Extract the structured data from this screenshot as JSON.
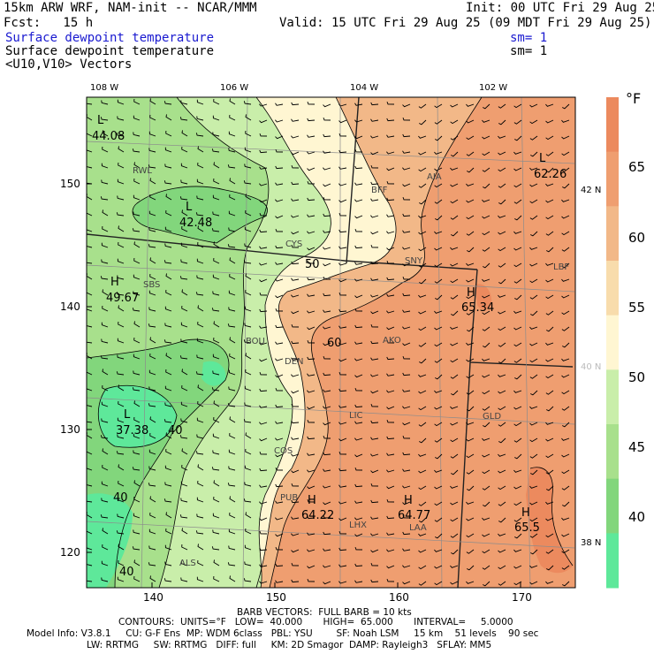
{
  "header": {
    "model_title": "15km ARW WRF, NAM-init -- NCAR/MMM",
    "init": "Init: 00 UTC Fri 29 Aug 25",
    "fcst": "Fcst:   15 h",
    "valid": "Valid: 15 UTC Fri 29 Aug 25 (09 MDT Fri 29 Aug 25)",
    "field1": "Surface dewpoint temperature",
    "field1_sm": "sm= 1",
    "field2": "Surface dewpoint temperature",
    "field2_sm": "sm= 1",
    "field3": "<U10,V10> Vectors"
  },
  "top_axis": [
    "108 W",
    "106 W",
    "104 W",
    "102 W"
  ],
  "left_axis": [
    "150",
    "140",
    "130",
    "120"
  ],
  "bottom_axis": [
    "140",
    "150",
    "160",
    "170"
  ],
  "right_lat": [
    "42 N",
    "40 N",
    "38 N"
  ],
  "colorbar": {
    "unit": "°F",
    "ticks": [
      "65",
      "60",
      "55",
      "50",
      "45",
      "40"
    ],
    "colors": [
      "#5ee89a",
      "#82d67c",
      "#a8e08c",
      "#c9eeaa",
      "#fff6d2",
      "#f8dcac",
      "#f2b888",
      "#ef9e70",
      "#ec8a5e"
    ]
  },
  "map_labels": {
    "low_nw": "L",
    "low_nw_val": "44.08",
    "low_c": "L",
    "low_c_val": "42.48",
    "high_w": "H",
    "high_w_val": "49.67",
    "low_sw": "L",
    "low_sw_val": "37.38",
    "low_ne": "L",
    "low_ne_val": "62.26",
    "high_ne": "H",
    "high_ne_val": "65.34",
    "high_pub": "H",
    "high_pub_val": "64.22",
    "high_laa": "H",
    "high_laa_val": "64.77",
    "high_se": "H",
    "high_se_val": "65.5",
    "contour_50": "50",
    "contour_60": "60",
    "contour_40a": "40",
    "contour_40b": "40",
    "contour_40c": "40",
    "stations": [
      "RWL",
      "BFF",
      "AIA",
      "CYS",
      "SNY",
      "LBF",
      "SBS",
      "BOU",
      "AKO",
      "DEN",
      "LIC",
      "GLD",
      "COS",
      "PUB",
      "LHX",
      "LAA",
      "ALS",
      "LBE"
    ]
  },
  "footer": {
    "barb": "BARB VECTORS:  FULL BARB = 10 kts",
    "contours": "CONTOURS:  UNITS=°F   LOW=  40.000       HIGH=  65.000       INTERVAL=     5.0000",
    "model_info": "Model Info: V3.8.1     CU: G-F Ens  MP: WDM 6class   PBL: YSU        SF: Noah LSM     15 km    51 levels    90 sec",
    "model_info2": "LW: RRTMG     SW: RRTMG   DIFF: full     KM: 2D Smagor  DAMP: Rayleigh3   SFLAY: MM5"
  }
}
